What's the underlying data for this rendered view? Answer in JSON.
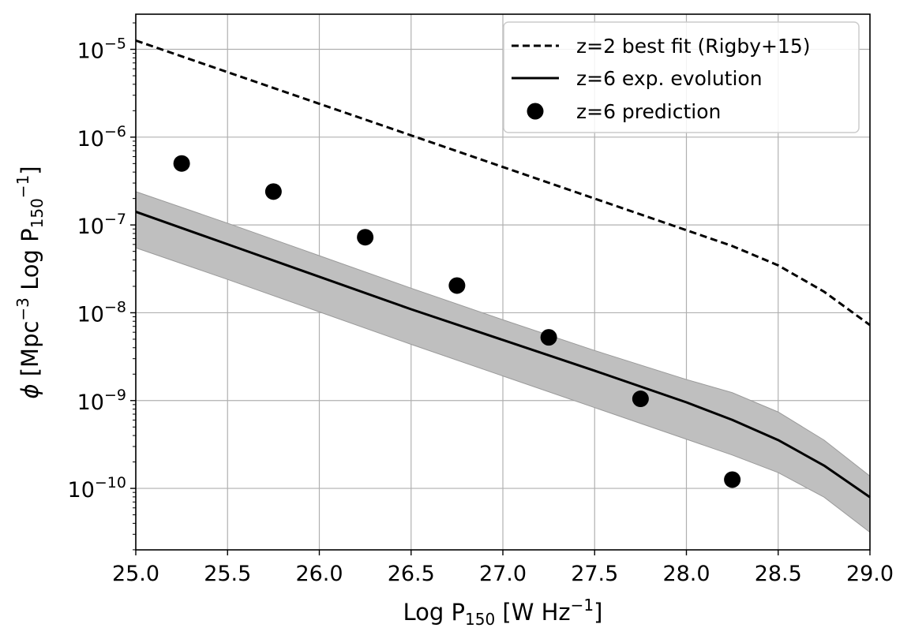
{
  "chart_data": {
    "type": "line",
    "title": "",
    "xlabel": "Log P150 [W Hz-1]",
    "ylabel": "phi [Mpc-3 Log P150 -1]",
    "xlabel_parts": {
      "main": "Log P",
      "sub": "150",
      "unit_open": " [W Hz",
      "sup": "−1",
      "unit_close": "]"
    },
    "ylabel_parts": {
      "phi": "ϕ",
      "open": " [Mpc",
      "sup1": "−3",
      "mid": " Log P",
      "sub": "150",
      "sup2": "−1",
      "close": "]"
    },
    "xlim": [
      25.0,
      29.0
    ],
    "ylim_log10": [
      -10.7,
      -4.6
    ],
    "yscale": "log",
    "grid": true,
    "x_ticks": [
      "25.0",
      "25.5",
      "26.0",
      "26.5",
      "27.0",
      "27.5",
      "28.0",
      "28.5",
      "29.0"
    ],
    "y_ticks": [
      {
        "exponent": -5,
        "base": "10",
        "sup": "−5"
      },
      {
        "exponent": -6,
        "base": "10",
        "sup": "−6"
      },
      {
        "exponent": -7,
        "base": "10",
        "sup": "−7"
      },
      {
        "exponent": -8,
        "base": "10",
        "sup": "−8"
      },
      {
        "exponent": -9,
        "base": "10",
        "sup": "−9"
      },
      {
        "exponent": -10,
        "base": "10",
        "sup": "−10"
      }
    ],
    "legend_position": "top-right",
    "series": [
      {
        "name": "z=2 best fit (Rigby+15)",
        "style": "dashed",
        "color": "#000000",
        "x": [
          25.0,
          25.5,
          26.0,
          26.5,
          27.0,
          27.5,
          28.0,
          28.25,
          28.5,
          28.75,
          29.0
        ],
        "log10y": [
          -4.9,
          -5.26,
          -5.62,
          -5.98,
          -6.34,
          -6.7,
          -7.06,
          -7.24,
          -7.46,
          -7.76,
          -8.14
        ]
      },
      {
        "name": "z=6 exp. evolution",
        "style": "solid",
        "color": "#000000",
        "x": [
          25.0,
          25.5,
          26.0,
          26.5,
          27.0,
          27.5,
          28.0,
          28.25,
          28.5,
          28.75,
          29.0
        ],
        "log10y": [
          -6.85,
          -7.22,
          -7.59,
          -7.96,
          -8.31,
          -8.66,
          -9.02,
          -9.22,
          -9.45,
          -9.74,
          -10.1
        ],
        "band_log10_upper": [
          -6.62,
          -6.98,
          -7.35,
          -7.72,
          -8.08,
          -8.43,
          -8.76,
          -8.91,
          -9.13,
          -9.45,
          -9.86
        ],
        "band_log10_lower": [
          -7.26,
          -7.62,
          -7.99,
          -8.36,
          -8.72,
          -9.08,
          -9.44,
          -9.62,
          -9.82,
          -10.1,
          -10.5
        ],
        "band_color": "#bfbfbf"
      },
      {
        "name": "z=6 prediction",
        "style": "markers",
        "color": "#000000",
        "x": [
          25.25,
          25.75,
          26.25,
          26.75,
          27.25,
          27.75,
          28.25
        ],
        "log10y": [
          -6.3,
          -6.62,
          -7.14,
          -7.69,
          -8.28,
          -8.98,
          -9.9
        ]
      }
    ]
  }
}
